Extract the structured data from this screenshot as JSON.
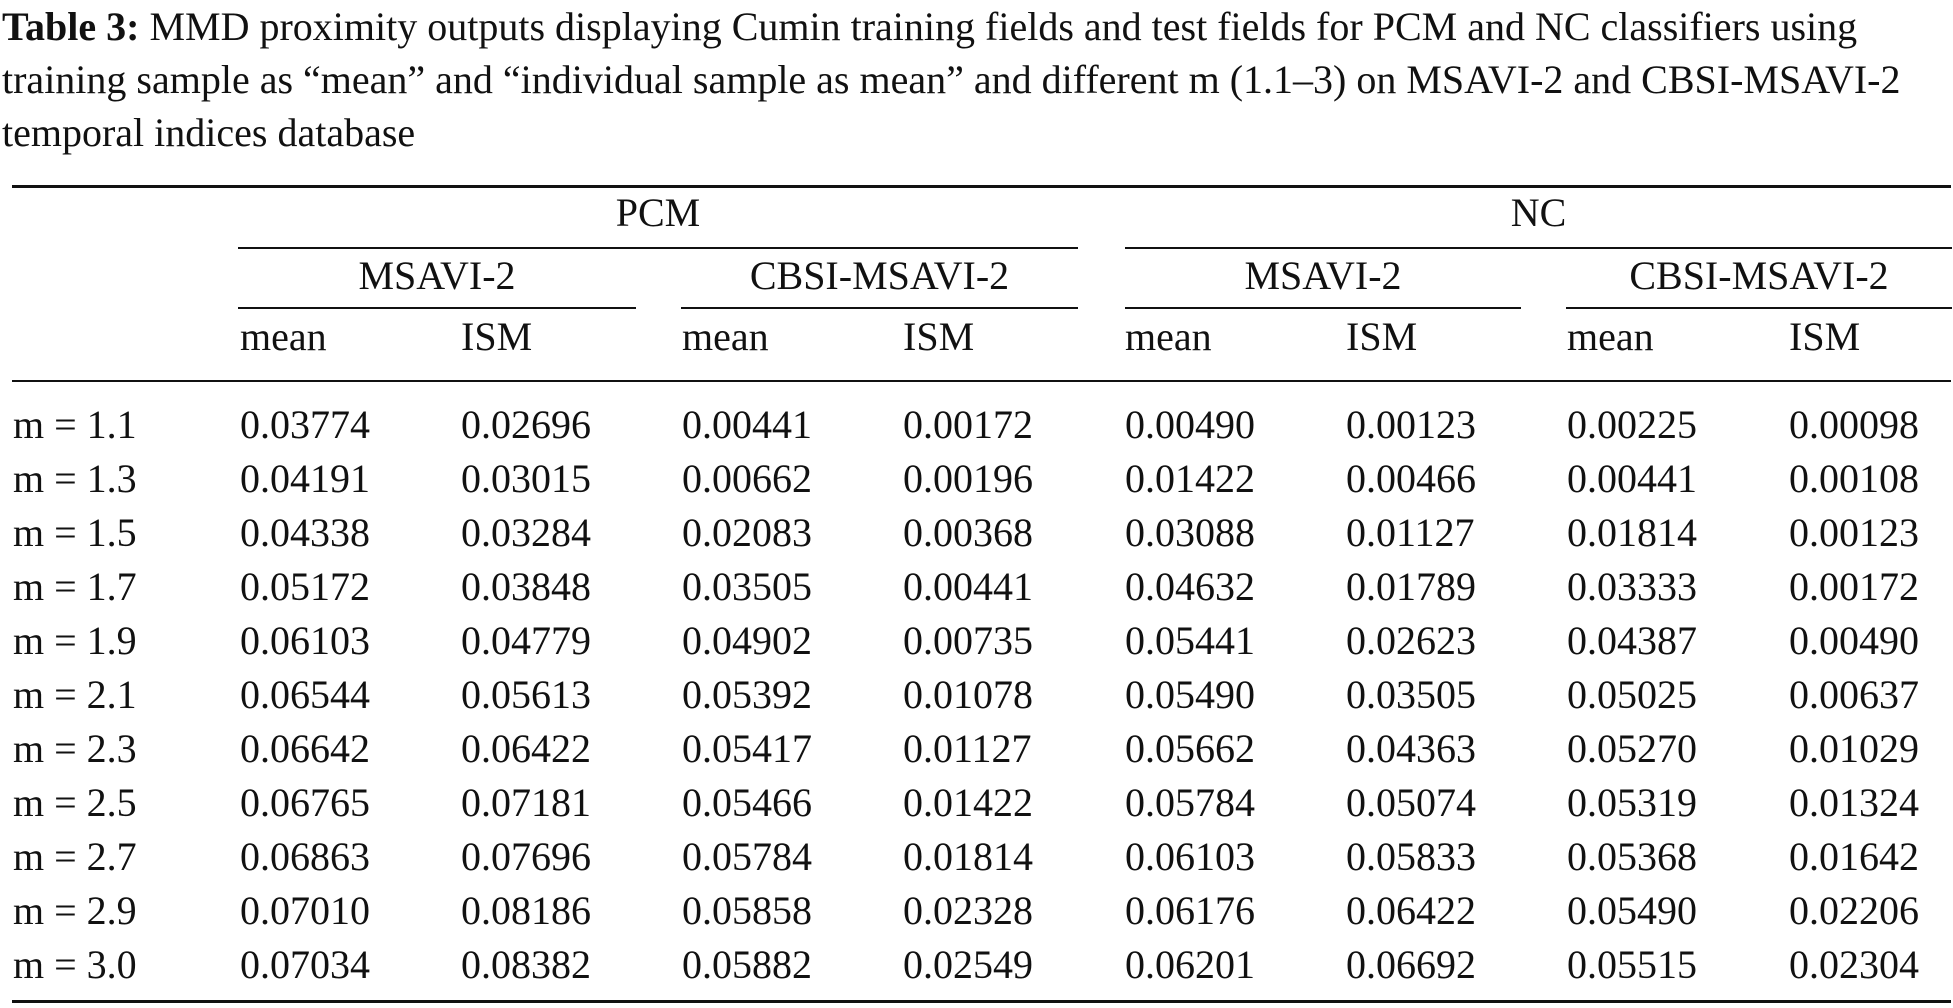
{
  "caption": {
    "label": "Table 3:",
    "text": " MMD proximity outputs displaying Cumin training fields and test fields for PCM and NC classifiers using training sample as “mean” and “individual sample as mean” and different m (1.1–3) on MSAVI-2 and CBSI-MSAVI-2 temporal indices database"
  },
  "table": {
    "groups": [
      "PCM",
      "NC"
    ],
    "subgroups": [
      "MSAVI-2",
      "CBSI-MSAVI-2",
      "MSAVI-2",
      "CBSI-MSAVI-2"
    ],
    "columns": [
      "mean",
      "ISM",
      "mean",
      "ISM",
      "mean",
      "ISM",
      "mean",
      "ISM"
    ],
    "rows": [
      {
        "label": "m = 1.1",
        "values": [
          "0.03774",
          "0.02696",
          "0.00441",
          "0.00172",
          "0.00490",
          "0.00123",
          "0.00225",
          "0.00098"
        ]
      },
      {
        "label": "m = 1.3",
        "values": [
          "0.04191",
          "0.03015",
          "0.00662",
          "0.00196",
          "0.01422",
          "0.00466",
          "0.00441",
          "0.00108"
        ]
      },
      {
        "label": "m = 1.5",
        "values": [
          "0.04338",
          "0.03284",
          "0.02083",
          "0.00368",
          "0.03088",
          "0.01127",
          "0.01814",
          "0.00123"
        ]
      },
      {
        "label": "m = 1.7",
        "values": [
          "0.05172",
          "0.03848",
          "0.03505",
          "0.00441",
          "0.04632",
          "0.01789",
          "0.03333",
          "0.00172"
        ]
      },
      {
        "label": "m = 1.9",
        "values": [
          "0.06103",
          "0.04779",
          "0.04902",
          "0.00735",
          "0.05441",
          "0.02623",
          "0.04387",
          "0.00490"
        ]
      },
      {
        "label": "m = 2.1",
        "values": [
          "0.06544",
          "0.05613",
          "0.05392",
          "0.01078",
          "0.05490",
          "0.03505",
          "0.05025",
          "0.00637"
        ]
      },
      {
        "label": "m = 2.3",
        "values": [
          "0.06642",
          "0.06422",
          "0.05417",
          "0.01127",
          "0.05662",
          "0.04363",
          "0.05270",
          "0.01029"
        ]
      },
      {
        "label": "m = 2.5",
        "values": [
          "0.06765",
          "0.07181",
          "0.05466",
          "0.01422",
          "0.05784",
          "0.05074",
          "0.05319",
          "0.01324"
        ]
      },
      {
        "label": "m = 2.7",
        "values": [
          "0.06863",
          "0.07696",
          "0.05784",
          "0.01814",
          "0.06103",
          "0.05833",
          "0.05368",
          "0.01642"
        ]
      },
      {
        "label": "m = 2.9",
        "values": [
          "0.07010",
          "0.08186",
          "0.05858",
          "0.02328",
          "0.06176",
          "0.06422",
          "0.05490",
          "0.02206"
        ]
      },
      {
        "label": "m = 3.0",
        "values": [
          "0.07034",
          "0.08382",
          "0.05882",
          "0.02549",
          "0.06201",
          "0.06692",
          "0.05515",
          "0.02304"
        ]
      }
    ]
  }
}
